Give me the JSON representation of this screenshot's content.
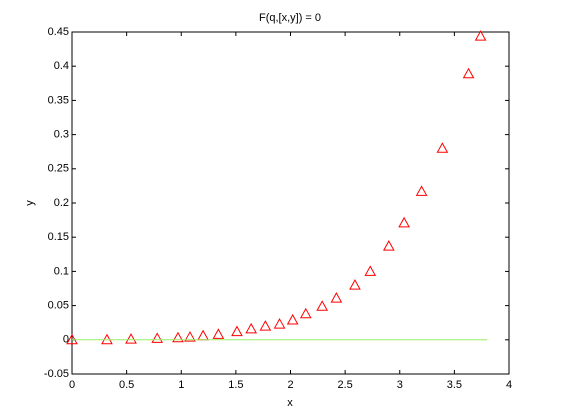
{
  "chart_data": {
    "type": "scatter",
    "title": "F(q,[x,y]) = 0",
    "x_label": "x",
    "y_label": "y",
    "xlim": [
      0,
      4
    ],
    "xticks": [
      0,
      0.5,
      1,
      1.5,
      2,
      2.5,
      3,
      3.5,
      4
    ],
    "ylim": [
      -0.05,
      0.45
    ],
    "yticks": [
      -0.05,
      0,
      0.05,
      0.1,
      0.15,
      0.2,
      0.25,
      0.3,
      0.35,
      0.4,
      0.45
    ],
    "grid": false,
    "series": [
      {
        "type": "scatter",
        "marker": "triangle",
        "color": "#ff0000",
        "x": [
          0,
          0.32,
          0.54,
          0.78,
          0.97,
          1.08,
          1.2,
          1.34,
          1.51,
          1.64,
          1.77,
          1.9,
          2.02,
          2.14,
          2.29,
          2.42,
          2.59,
          2.73,
          2.9,
          3.04,
          3.2,
          3.39,
          3.63,
          3.74
        ],
        "values": [
          0,
          0,
          0.001,
          0.002,
          0.003,
          0.004,
          0.006,
          0.008,
          0.012,
          0.016,
          0.02,
          0.023,
          0.029,
          0.038,
          0.049,
          0.061,
          0.08,
          0.1,
          0.137,
          0.171,
          0.217,
          0.28,
          0.389,
          0.444
        ]
      },
      {
        "type": "line",
        "color": "#99ee66",
        "x": [
          0,
          3.8
        ],
        "values": [
          0,
          0
        ]
      }
    ]
  }
}
